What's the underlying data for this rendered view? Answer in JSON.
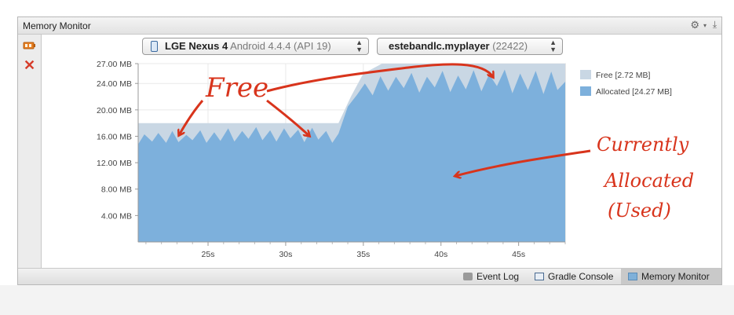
{
  "window": {
    "title": "Memory Monitor"
  },
  "device_select": {
    "device": "LGE Nexus 4",
    "version": "Android 4.4.4 (API 19)"
  },
  "process_select": {
    "name": "estebandlc.myplayer",
    "pid": "(22422)"
  },
  "tool_icons": [
    "gc-icon",
    "close-icon"
  ],
  "chart_data": {
    "type": "area",
    "title": "",
    "xlabel": "",
    "ylabel": "",
    "yticks": [
      "27.00 MB",
      "24.00 MB",
      "20.00 MB",
      "16.00 MB",
      "12.00 MB",
      "8.00 MB",
      "4.00 MB"
    ],
    "ytick_values": [
      27,
      24,
      20,
      16,
      12,
      8,
      4
    ],
    "xticks": [
      "25s",
      "30s",
      "35s",
      "40s",
      "45s"
    ],
    "xtick_values": [
      25,
      30,
      35,
      40,
      45
    ],
    "xlim": [
      20.5,
      48
    ],
    "ylim": [
      0,
      27
    ],
    "grid": true,
    "legend_position": "right",
    "legend": [
      {
        "label": "Free [2.72 MB]",
        "color": "#c9d7e4"
      },
      {
        "label": "Allocated [24.27 MB]",
        "color": "#7db0dc"
      }
    ],
    "series": [
      {
        "name": "Total",
        "x": [
          20.5,
          33.4,
          34.2,
          35.0,
          36.2,
          48.0
        ],
        "y": [
          18.0,
          18.0,
          22.0,
          25.5,
          27.0,
          27.0
        ]
      },
      {
        "name": "Allocated",
        "x": [
          20.5,
          20.9,
          21.4,
          21.8,
          22.3,
          22.7,
          23.1,
          23.6,
          24.0,
          24.5,
          24.9,
          25.4,
          25.8,
          26.3,
          26.7,
          27.2,
          27.6,
          28.1,
          28.5,
          29.0,
          29.4,
          29.9,
          30.3,
          30.8,
          31.2,
          31.7,
          32.1,
          32.6,
          33.0,
          33.4,
          34.0,
          34.6,
          35.1,
          35.6,
          36.1,
          36.6,
          37.1,
          37.6,
          38.1,
          38.6,
          39.1,
          39.6,
          40.1,
          40.6,
          41.1,
          41.6,
          42.1,
          42.6,
          43.1,
          43.6,
          44.1,
          44.6,
          45.1,
          45.6,
          46.1,
          46.6,
          47.1,
          47.5,
          48.0
        ],
        "y": [
          14.8,
          16.3,
          15.2,
          16.5,
          15.0,
          16.8,
          15.1,
          16.2,
          15.4,
          16.9,
          15.0,
          16.6,
          15.3,
          17.2,
          15.2,
          16.8,
          15.6,
          17.4,
          15.4,
          16.9,
          15.2,
          17.2,
          15.7,
          17.0,
          15.1,
          17.3,
          15.5,
          16.8,
          15.0,
          16.4,
          20.5,
          22.3,
          24.0,
          22.2,
          25.1,
          22.9,
          25.0,
          23.3,
          25.6,
          22.6,
          25.0,
          23.4,
          25.9,
          22.7,
          25.2,
          23.1,
          26.0,
          22.8,
          25.4,
          23.6,
          26.1,
          22.5,
          25.5,
          23.0,
          25.9,
          22.4,
          25.8,
          23.0,
          24.27
        ]
      }
    ]
  },
  "annotations": {
    "free": "Free",
    "currently": "Currently",
    "allocated": "Allocated",
    "used": "(Used)"
  },
  "bottom_tabs": [
    {
      "label": "Event Log",
      "active": false
    },
    {
      "label": "Gradle Console",
      "active": false
    },
    {
      "label": "Memory Monitor",
      "active": true
    }
  ]
}
